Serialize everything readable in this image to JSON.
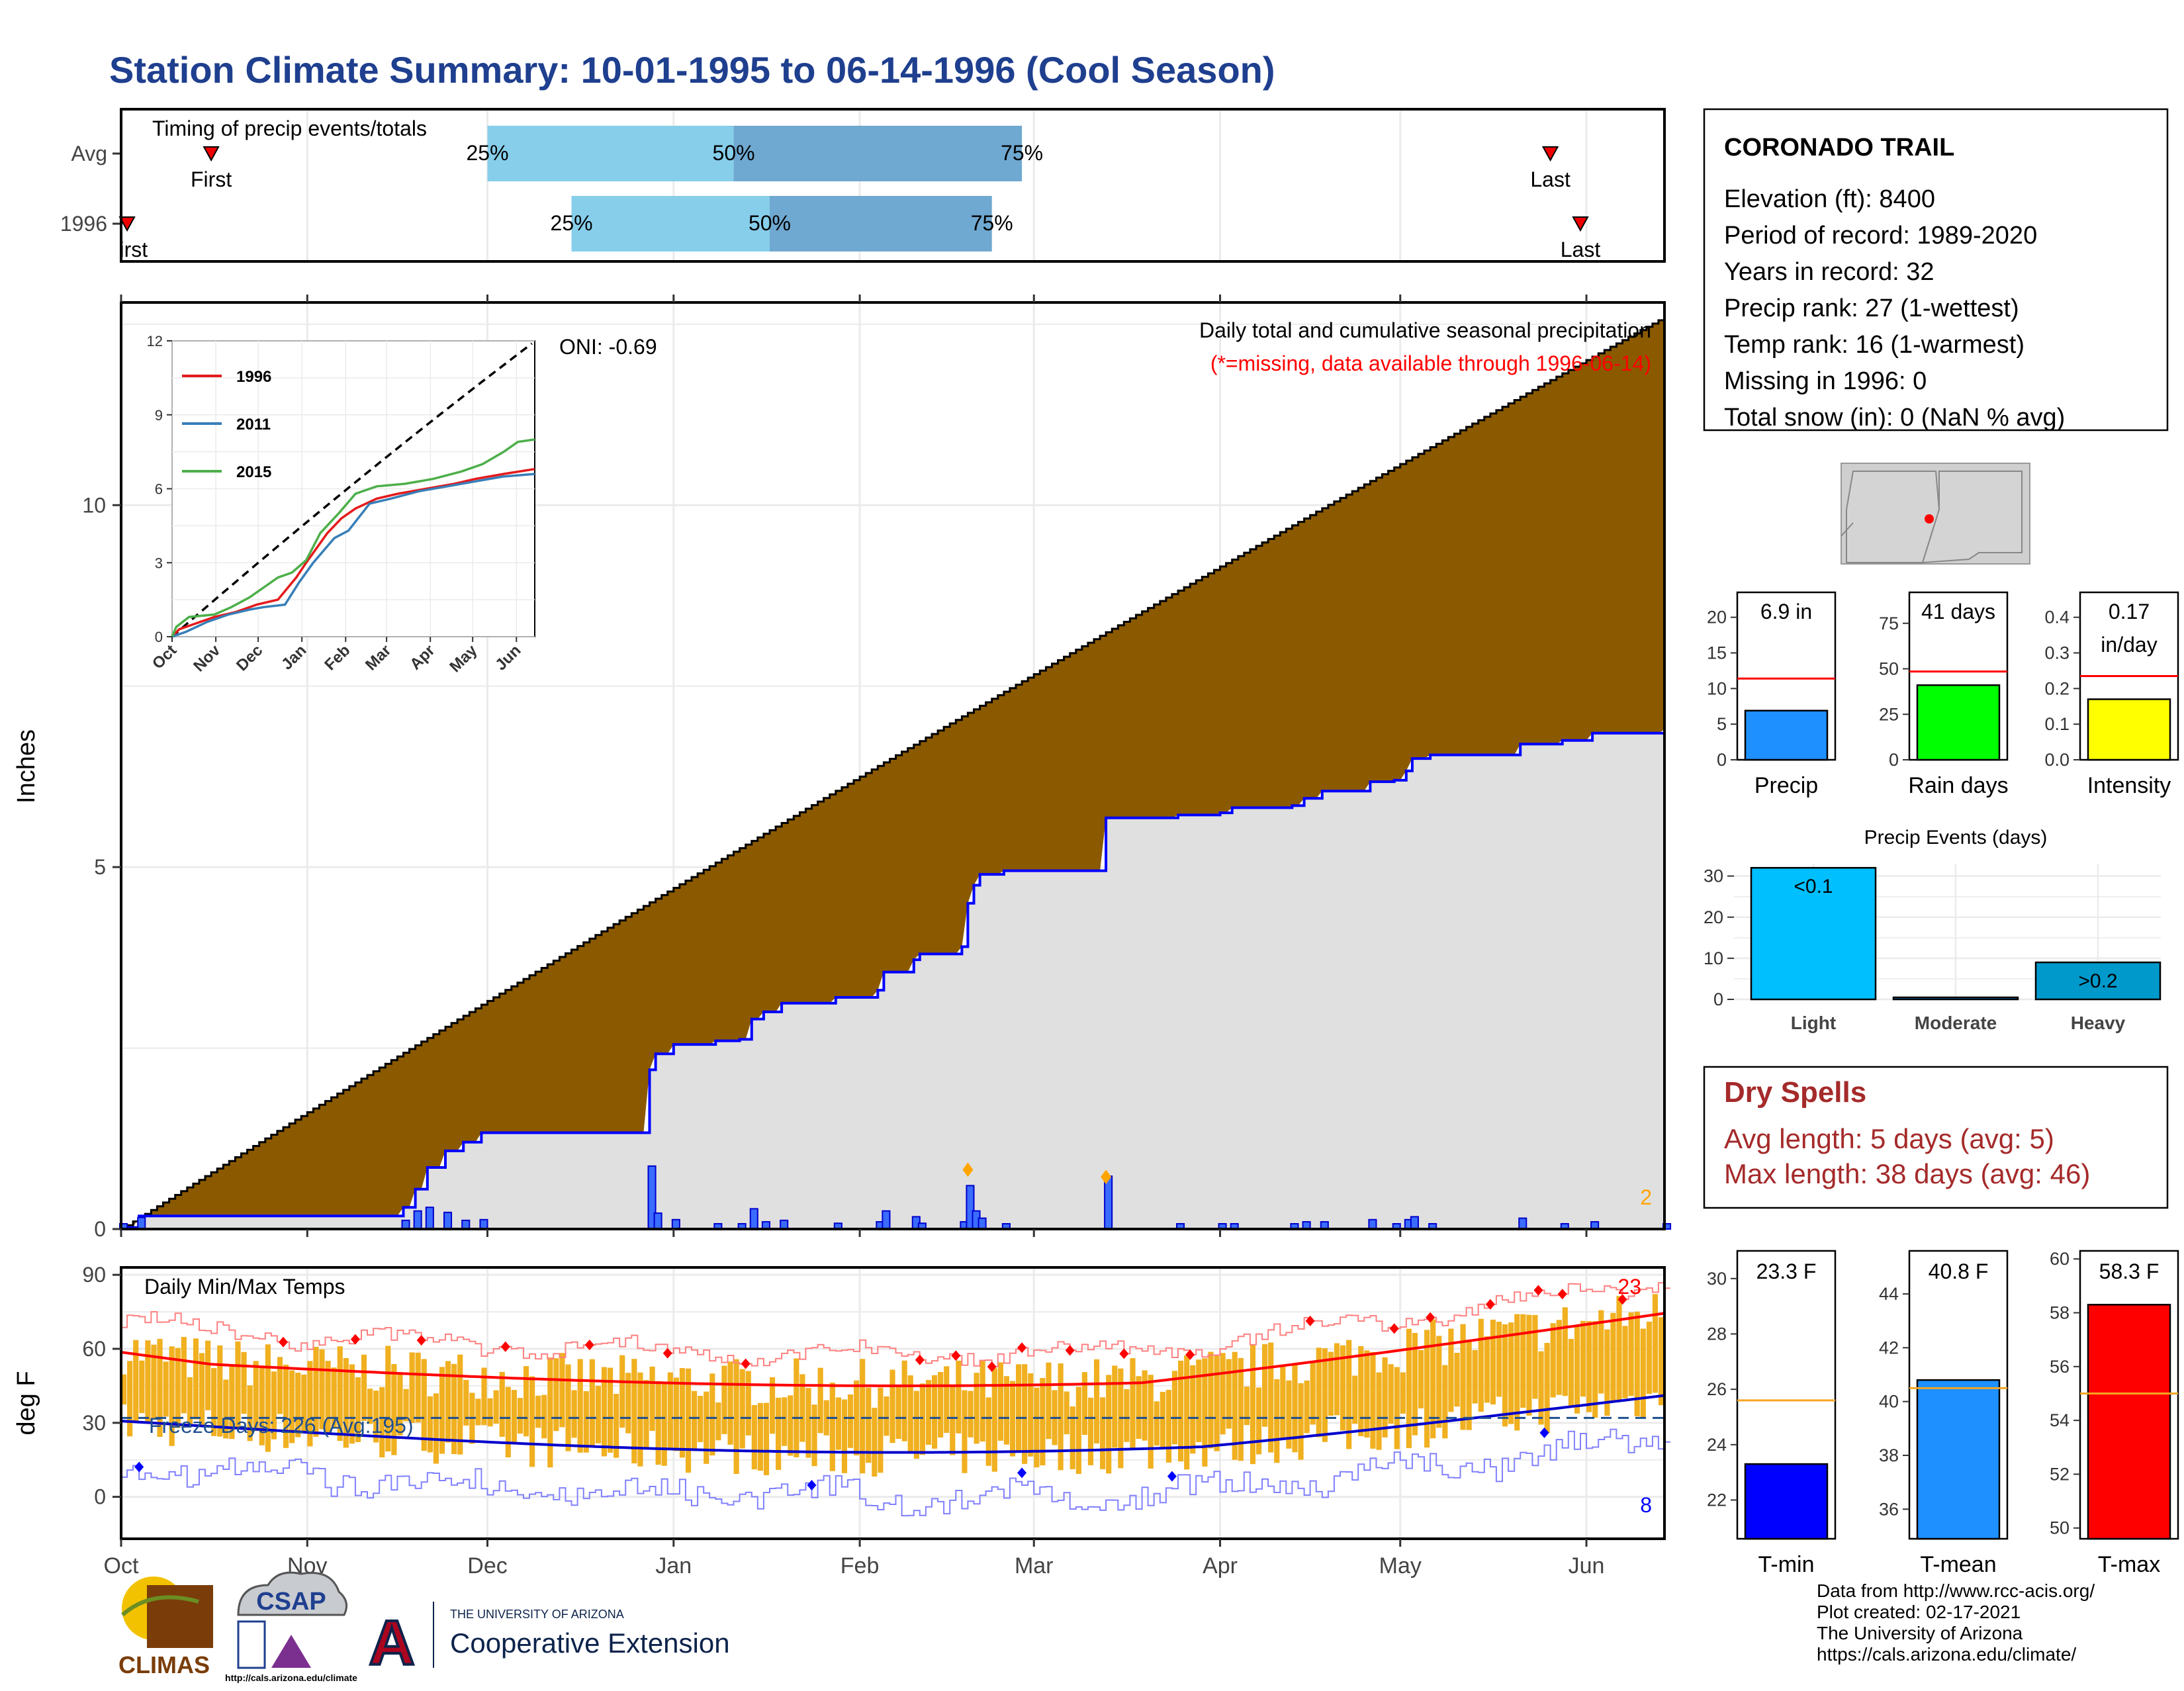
{
  "title": "Station Climate Summary: 10-01-1995 to 06-14-1996 (Cool Season)",
  "colors": {
    "title": "#1f3f8f",
    "brown": "#8b5a00",
    "grey_fill": "#e0e0e0",
    "blue_line": "#0000ff",
    "quartile_light": "#87ceeb",
    "quartile_dark": "#6fa8d0",
    "temp_bar": "#f0b020",
    "avg_line": "#ff0000",
    "dry_spell_text": "#a52a2a"
  },
  "months": [
    "Oct",
    "Nov",
    "Dec",
    "Jan",
    "Feb",
    "Mar",
    "Apr",
    "May",
    "Jun"
  ],
  "month_starts": [
    0,
    31,
    61,
    92,
    123,
    152,
    183,
    213,
    244
  ],
  "season_days": 257,
  "timing": {
    "heading": "Timing of precip events/totals",
    "rows": [
      {
        "label": "Avg",
        "first_day": 15,
        "last_day": 238,
        "q25": 61,
        "q50": 102,
        "q75": 150,
        "first_label": "First",
        "last_label": "Last",
        "p25": "25%",
        "p50": "50%",
        "p75": "75%"
      },
      {
        "label": "1996",
        "first_day": 1,
        "last_day": 243,
        "q25": 75,
        "q50": 108,
        "q75": 145,
        "first_label": "First",
        "last_label": "Last",
        "p25": "25%",
        "p50": "50%",
        "p75": "75%"
      }
    ]
  },
  "precip": {
    "ylabel": "Inches",
    "yticks": [
      0,
      5,
      10
    ],
    "ymax": 12.8,
    "legend_title": "Daily total and cumulative seasonal precipitation",
    "missing_note": "(*=missing, data available through 1996-06-14)",
    "oni": "ONI: -0.69",
    "corner_count": "2"
  },
  "inset": {
    "yticks": [
      "0",
      "3",
      "6",
      "9",
      "12"
    ],
    "months": [
      "Oct",
      "Nov",
      "Dec",
      "Jan",
      "Feb",
      "Mar",
      "Apr",
      "May",
      "Jun"
    ],
    "legend": [
      {
        "year": "1996",
        "color": "#e41a1c"
      },
      {
        "year": "2011",
        "color": "#377eb8"
      },
      {
        "year": "2015",
        "color": "#4daf4a"
      }
    ]
  },
  "temps": {
    "ylabel": "deg F",
    "label": "Daily Min/Max Temps",
    "yticks": [
      0,
      30,
      60,
      90
    ],
    "freeze_text": "Freeze Days: 226 (Avg:195)",
    "max_count": "23",
    "min_count": "8"
  },
  "station": {
    "name": "CORONADO TRAIL",
    "lines": [
      "Elevation (ft): 8400",
      "Period of record: 1989-2020",
      "Years in record: 32",
      "Precip rank: 27 (1-wettest)",
      "Temp rank: 16 (1-warmest)",
      "Missing in 1996: 0",
      "Total snow (in): 0 (NaN % avg)"
    ]
  },
  "mini_bars": [
    {
      "label": "Precip",
      "value": 6.9,
      "avg": 11.4,
      "ymax": 23.5,
      "ticks": [
        0,
        5,
        10,
        15,
        20
      ],
      "text": "6.9 in",
      "color": "#1e90ff"
    },
    {
      "label": "Rain days",
      "value": 41,
      "avg": 48.5,
      "ymax": 92,
      "ticks": [
        0,
        25,
        50,
        75
      ],
      "text": "41 days",
      "color": "#00ff00"
    },
    {
      "label": "Intensity",
      "value": 0.17,
      "avg": 0.235,
      "ymax": 0.47,
      "ticks": [
        "0.0",
        "0.1",
        "0.2",
        "0.3",
        "0.4"
      ],
      "text": "0.17",
      "text2": "in/day",
      "color": "#ffff00"
    }
  ],
  "events": {
    "title": "Precip Events (days)",
    "ticks": [
      0,
      10,
      20,
      30
    ],
    "ymax": 33,
    "bars": [
      {
        "label": "Light",
        "value": 32,
        "text": "<0.1",
        "color": "#00bfff"
      },
      {
        "label": "Moderate",
        "value": 0,
        "text": "",
        "color": "#1e90ff"
      },
      {
        "label": "Heavy",
        "value": 9,
        "text": ">0.2",
        "color": "#0099cc"
      }
    ]
  },
  "dry_spells": {
    "title": "Dry Spells",
    "avg": "Avg length: 5 days (avg: 5)",
    "max": "Max length: 38 days (avg: 46)"
  },
  "temp_bars": [
    {
      "label": "T-min",
      "value": 23.3,
      "avg": 25.6,
      "ymin": 20.6,
      "ymax": 31.0,
      "ticks": [
        22,
        24,
        26,
        28,
        30
      ],
      "text": "23.3 F",
      "color": "#0000ff"
    },
    {
      "label": "T-mean",
      "value": 40.8,
      "avg": 40.5,
      "ymin": 34.9,
      "ymax": 45.6,
      "ticks": [
        36,
        38,
        40,
        42,
        44
      ],
      "text": "40.8 F",
      "color": "#1e90ff"
    },
    {
      "label": "T-max",
      "value": 58.3,
      "avg": 55.0,
      "ymin": 49.6,
      "ymax": 60.3,
      "ticks": [
        50,
        52,
        54,
        56,
        58,
        60
      ],
      "text": "58.3 F",
      "color": "#ff0000"
    }
  ],
  "footer": [
    "Data from http://www.rcc-acis.org/",
    "Plot created: 02-17-2021",
    "The University of Arizona",
    "https://cals.arizona.edu/climate/"
  ],
  "logos": {
    "climas": "CLIMAS",
    "csap": "CSAP",
    "csap_url": "http://cals.arizona.edu/climate",
    "ua_small": "THE UNIVERSITY OF ARIZONA",
    "ua_big": "Cooperative Extension",
    "ua_letter": "A"
  }
}
